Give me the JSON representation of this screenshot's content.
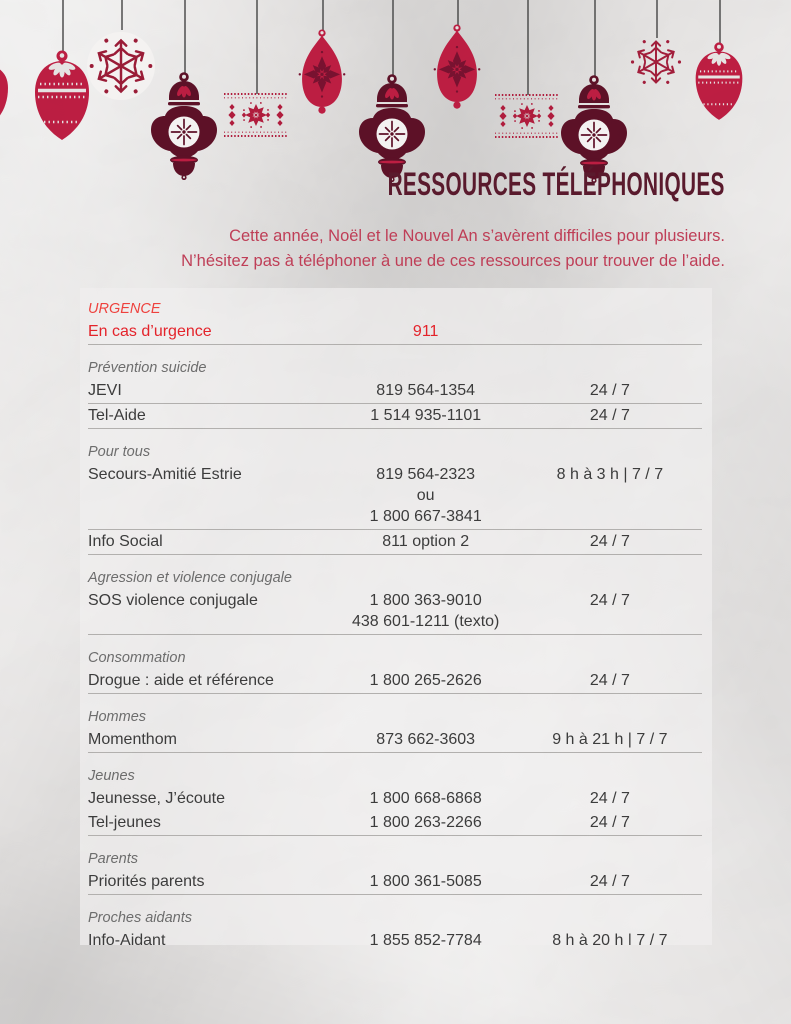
{
  "header": {
    "title": "RESSOURCES TÉLÉPHONIQUES",
    "intro_line1": "Cette année, Noël et le Nouvel An s’avèrent difficiles pour plusieurs.",
    "intro_line2": "N’hésitez pas à téléphoner à une de ces ressources pour trouver de l’aide."
  },
  "colors": {
    "paper-bg": "#e9e7e6",
    "panel": "#f2f1f0",
    "crimson": "#bf1e43",
    "crimson-deep": "#a31c3c",
    "maroon": "#5e1127",
    "star-dark": "#7a1230",
    "white-orn": "#f8f6f5",
    "title": "#5b1a2d",
    "intro": "#c23f58",
    "urgent-label": "#f2423e",
    "urgent-text": "#e8232b",
    "text": "#3d3d3d",
    "section-label": "#6f6f6f",
    "divider": "#b5b3b1"
  },
  "decor": {
    "ornaments": [
      "partial-teardrop",
      "bauble",
      "snowflake-ball",
      "finial",
      "nordic-band",
      "teardrop-star",
      "finial",
      "teardrop-star",
      "nordic-band",
      "finial",
      "snowflake",
      "bauble"
    ]
  },
  "directory": {
    "sections": [
      {
        "label": "URGENCE",
        "urgent": true,
        "rows": [
          {
            "name": "En cas d’urgence",
            "phone_lines": [
              "911"
            ],
            "hours": "",
            "divider": true
          }
        ]
      },
      {
        "label": "Prévention suicide",
        "urgent": false,
        "rows": [
          {
            "name": "JEVI",
            "phone_lines": [
              "819 564-1354"
            ],
            "hours": "24 / 7",
            "divider": true
          },
          {
            "name": "Tel-Aide",
            "phone_lines": [
              "1 514 935-1101"
            ],
            "hours": "24 / 7",
            "divider": true
          }
        ]
      },
      {
        "label": "Pour tous",
        "urgent": false,
        "rows": [
          {
            "name": "Secours-Amitié Estrie",
            "phone_lines": [
              "819 564-2323",
              "ou",
              "1 800 667-3841"
            ],
            "hours": "8 h à 3 h | 7 / 7",
            "divider": true
          },
          {
            "name": "Info Social",
            "phone_lines": [
              "811 option 2"
            ],
            "hours": "24 / 7",
            "divider": true
          }
        ]
      },
      {
        "label": "Agression et violence conjugale",
        "urgent": false,
        "rows": [
          {
            "name": "SOS violence conjugale",
            "phone_lines": [
              "1 800 363-9010",
              "438 601-1211 (texto)"
            ],
            "hours": "24 / 7",
            "divider": true
          }
        ]
      },
      {
        "label": "Consommation",
        "urgent": false,
        "rows": [
          {
            "name": "Drogue : aide et référence",
            "phone_lines": [
              "1 800 265-2626"
            ],
            "hours": "24 / 7",
            "divider": true
          }
        ]
      },
      {
        "label": "Hommes",
        "urgent": false,
        "rows": [
          {
            "name": "Momenthom",
            "phone_lines": [
              "873 662-3603"
            ],
            "hours": "9 h à 21 h | 7 / 7",
            "divider": true
          }
        ]
      },
      {
        "label": "Jeunes",
        "urgent": false,
        "rows": [
          {
            "name": "Jeunesse, J’écoute",
            "phone_lines": [
              "1 800 668-6868"
            ],
            "hours": "24 / 7",
            "divider": false
          },
          {
            "name": "Tel-jeunes",
            "phone_lines": [
              "1 800 263-2266"
            ],
            "hours": "24 / 7",
            "divider": true
          }
        ]
      },
      {
        "label": "Parents",
        "urgent": false,
        "rows": [
          {
            "name": "Priorités parents",
            "phone_lines": [
              "1 800 361-5085"
            ],
            "hours": "24 / 7",
            "divider": true
          }
        ]
      },
      {
        "label": "Proches aidants",
        "urgent": false,
        "rows": [
          {
            "name": "Info-Aidant",
            "phone_lines": [
              "1 855 852-7784"
            ],
            "hours": "8 h à 20 h | 7 / 7",
            "divider": true
          }
        ]
      }
    ]
  }
}
